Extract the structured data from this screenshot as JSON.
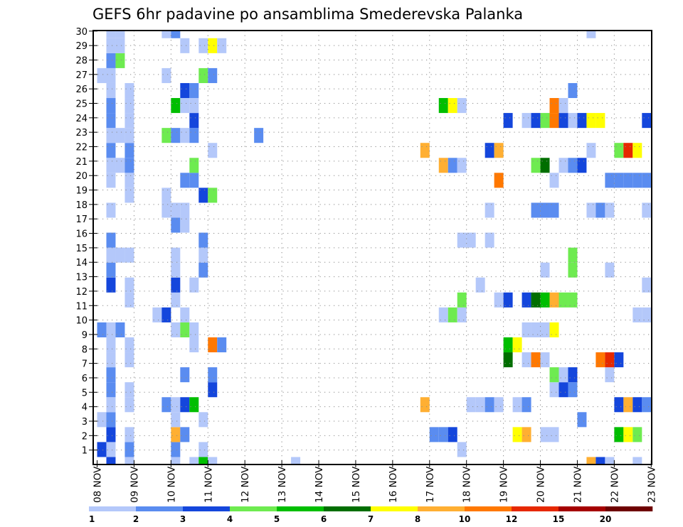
{
  "chart_data": {
    "type": "heatmap",
    "title": "GEFS 6hr padavine po ansamblima Smederevska Palanka",
    "xlabel": "",
    "ylabel": "",
    "x_unit": "6-hour step from 08 NOV 00Z",
    "x_range": [
      0,
      60
    ],
    "y_range": [
      0,
      30
    ],
    "grid": true,
    "x_ticks": [
      {
        "step": 0,
        "label": "08 NOV"
      },
      {
        "step": 4,
        "label": "09 NOV"
      },
      {
        "step": 8,
        "label": "10 NOV"
      },
      {
        "step": 12,
        "label": "11 NOV"
      },
      {
        "step": 16,
        "label": "12 NOV"
      },
      {
        "step": 20,
        "label": "13 NOV"
      },
      {
        "step": 24,
        "label": "14 NOV"
      },
      {
        "step": 28,
        "label": "15 NOV"
      },
      {
        "step": 32,
        "label": "16 NOV"
      },
      {
        "step": 36,
        "label": "17 NOV"
      },
      {
        "step": 40,
        "label": "18 NOV"
      },
      {
        "step": 44,
        "label": "19 NOV"
      },
      {
        "step": 48,
        "label": "20 NOV"
      },
      {
        "step": 52,
        "label": "21 NOV"
      },
      {
        "step": 56,
        "label": "22 NOV"
      },
      {
        "step": 60,
        "label": "23 NOV"
      }
    ],
    "y_ticks": [
      "1",
      "2",
      "3",
      "4",
      "5",
      "6",
      "7",
      "8",
      "9",
      "10",
      "11",
      "12",
      "13",
      "14",
      "15",
      "16",
      "17",
      "18",
      "19",
      "20",
      "21",
      "22",
      "23",
      "24",
      "25",
      "26",
      "27",
      "28",
      "29",
      "30"
    ],
    "colorbar": {
      "placement": "bottom",
      "levels": [
        1,
        2,
        3,
        4,
        5,
        6,
        7,
        8,
        10,
        12,
        15,
        20
      ],
      "labels": [
        "1",
        "2",
        "3",
        "4",
        "5",
        "6",
        "7",
        "8",
        "10",
        "12",
        "15",
        "20"
      ],
      "colors": [
        "#b4c8fa",
        "#5a8cf0",
        "#1446dc",
        "#6eeb50",
        "#00be00",
        "#006e00",
        "#ffff00",
        "#ffaf32",
        "#ff7800",
        "#e62800",
        "#a50000",
        "#6e0000"
      ]
    },
    "value_unit": "mm / 6h (bin midpoint estimated from color)",
    "members": [
      {
        "member": 0,
        "cells": [
          [
            1,
            3.5
          ],
          [
            3,
            1.5
          ],
          [
            8,
            1.5
          ],
          [
            10,
            1.5
          ],
          [
            11,
            5.5
          ],
          [
            12,
            1.5
          ],
          [
            21,
            1.5
          ],
          [
            53,
            9
          ],
          [
            54,
            3.5
          ],
          [
            55,
            1.5
          ],
          [
            58,
            1.5
          ]
        ]
      },
      {
        "member": 1,
        "cells": [
          [
            0,
            3.5
          ],
          [
            1,
            1.5
          ],
          [
            3,
            2.5
          ],
          [
            8,
            2.5
          ],
          [
            11,
            1.5
          ],
          [
            39,
            1.5
          ]
        ]
      },
      {
        "member": 2,
        "cells": [
          [
            1,
            3.5
          ],
          [
            3,
            1.5
          ],
          [
            8,
            9
          ],
          [
            9,
            2.5
          ],
          [
            36,
            2.5
          ],
          [
            37,
            2.5
          ],
          [
            38,
            3.5
          ],
          [
            45,
            7.5
          ],
          [
            46,
            9
          ],
          [
            48,
            1.5
          ],
          [
            49,
            1.5
          ],
          [
            56,
            5.5
          ],
          [
            57,
            7.5
          ],
          [
            58,
            4.5
          ]
        ]
      },
      {
        "member": 3,
        "cells": [
          [
            0,
            1.5
          ],
          [
            1,
            2.5
          ],
          [
            8,
            1.5
          ],
          [
            11,
            1.5
          ],
          [
            52,
            2.5
          ]
        ]
      },
      {
        "member": 4,
        "cells": [
          [
            1,
            1.5
          ],
          [
            3,
            1.5
          ],
          [
            7,
            2.5
          ],
          [
            8,
            1.5
          ],
          [
            9,
            3.5
          ],
          [
            10,
            5.5
          ],
          [
            35,
            9
          ],
          [
            40,
            1.5
          ],
          [
            41,
            1.5
          ],
          [
            42,
            2.5
          ],
          [
            43,
            1.5
          ],
          [
            45,
            1.5
          ],
          [
            46,
            2.5
          ],
          [
            56,
            3.5
          ],
          [
            57,
            9
          ],
          [
            58,
            3.5
          ],
          [
            59,
            2.5
          ]
        ]
      },
      {
        "member": 5,
        "cells": [
          [
            1,
            2.5
          ],
          [
            3,
            1.5
          ],
          [
            12,
            3.5
          ],
          [
            49,
            1.5
          ],
          [
            50,
            3.5
          ],
          [
            51,
            2.5
          ]
        ]
      },
      {
        "member": 6,
        "cells": [
          [
            1,
            2.5
          ],
          [
            9,
            2.5
          ],
          [
            12,
            2.5
          ],
          [
            49,
            4.5
          ],
          [
            50,
            1.5
          ],
          [
            51,
            3.5
          ],
          [
            55,
            1.5
          ]
        ]
      },
      {
        "member": 7,
        "cells": [
          [
            1,
            1.5
          ],
          [
            3,
            1.5
          ],
          [
            44,
            6.5
          ],
          [
            46,
            1.5
          ],
          [
            47,
            11
          ],
          [
            48,
            1.5
          ],
          [
            54,
            11
          ],
          [
            55,
            13.5
          ],
          [
            56,
            3.5
          ]
        ]
      },
      {
        "member": 8,
        "cells": [
          [
            1,
            1.5
          ],
          [
            3,
            1.5
          ],
          [
            10,
            1.5
          ],
          [
            12,
            11
          ],
          [
            13,
            2.5
          ],
          [
            44,
            5.5
          ],
          [
            45,
            7.5
          ]
        ]
      },
      {
        "member": 9,
        "cells": [
          [
            0,
            2.5
          ],
          [
            1,
            1.5
          ],
          [
            2,
            2.5
          ],
          [
            8,
            1.5
          ],
          [
            9,
            4.5
          ],
          [
            10,
            1.5
          ],
          [
            46,
            1.5
          ],
          [
            47,
            1.5
          ],
          [
            48,
            1.5
          ],
          [
            49,
            7.5
          ]
        ]
      },
      {
        "member": 10,
        "cells": [
          [
            6,
            1.5
          ],
          [
            7,
            3.5
          ],
          [
            9,
            1.5
          ],
          [
            37,
            1.5
          ],
          [
            38,
            4.5
          ],
          [
            39,
            1.5
          ],
          [
            58,
            1.5
          ],
          [
            59,
            1.5
          ]
        ]
      },
      {
        "member": 11,
        "cells": [
          [
            3,
            1.5
          ],
          [
            8,
            1.5
          ],
          [
            39,
            4.5
          ],
          [
            43,
            1.5
          ],
          [
            44,
            3.5
          ],
          [
            46,
            3.5
          ],
          [
            47,
            6.5
          ],
          [
            48,
            5.5
          ],
          [
            49,
            9
          ],
          [
            50,
            4.5
          ],
          [
            51,
            4.5
          ]
        ]
      },
      {
        "member": 12,
        "cells": [
          [
            1,
            3.5
          ],
          [
            3,
            1.5
          ],
          [
            8,
            3.5
          ],
          [
            10,
            1.5
          ],
          [
            41,
            1.5
          ],
          [
            59,
            1.5
          ]
        ]
      },
      {
        "member": 13,
        "cells": [
          [
            1,
            2.5
          ],
          [
            8,
            1.5
          ],
          [
            11,
            2.5
          ],
          [
            48,
            1.5
          ],
          [
            51,
            4.5
          ],
          [
            55,
            1.5
          ]
        ]
      },
      {
        "member": 14,
        "cells": [
          [
            1,
            1.5
          ],
          [
            2,
            1.5
          ],
          [
            3,
            1.5
          ],
          [
            8,
            1.5
          ],
          [
            11,
            1.5
          ],
          [
            51,
            4.5
          ]
        ]
      },
      {
        "member": 15,
        "cells": [
          [
            1,
            2.5
          ],
          [
            11,
            2.5
          ],
          [
            39,
            1.5
          ],
          [
            40,
            1.5
          ],
          [
            42,
            1.5
          ]
        ]
      },
      {
        "member": 16,
        "cells": [
          [
            8,
            2.5
          ],
          [
            9,
            1.5
          ]
        ]
      },
      {
        "member": 17,
        "cells": [
          [
            1,
            1.5
          ],
          [
            7,
            1.5
          ],
          [
            8,
            1.5
          ],
          [
            9,
            1.5
          ],
          [
            42,
            1.5
          ],
          [
            47,
            2.5
          ],
          [
            48,
            2.5
          ],
          [
            49,
            2.5
          ],
          [
            53,
            1.5
          ],
          [
            54,
            2.5
          ],
          [
            55,
            1.5
          ],
          [
            59,
            1.5
          ]
        ]
      },
      {
        "member": 18,
        "cells": [
          [
            3,
            1.5
          ],
          [
            7,
            1.5
          ],
          [
            11,
            3.5
          ],
          [
            12,
            4.5
          ]
        ]
      },
      {
        "member": 19,
        "cells": [
          [
            1,
            1.5
          ],
          [
            3,
            1.5
          ],
          [
            9,
            2.5
          ],
          [
            10,
            2.5
          ],
          [
            43,
            11
          ],
          [
            49,
            1.5
          ],
          [
            55,
            2.5
          ],
          [
            56,
            2.5
          ],
          [
            57,
            2.5
          ],
          [
            58,
            2.5
          ],
          [
            59,
            2.5
          ]
        ]
      },
      {
        "member": 20,
        "cells": [
          [
            1,
            1.5
          ],
          [
            2,
            1.5
          ],
          [
            3,
            2.5
          ],
          [
            10,
            4.5
          ],
          [
            37,
            9
          ],
          [
            38,
            2.5
          ],
          [
            39,
            1.5
          ],
          [
            47,
            4.5
          ],
          [
            48,
            6.5
          ],
          [
            50,
            1.5
          ],
          [
            51,
            2.5
          ],
          [
            52,
            3.5
          ]
        ]
      },
      {
        "member": 21,
        "cells": [
          [
            1,
            2.5
          ],
          [
            3,
            2.5
          ],
          [
            12,
            1.5
          ],
          [
            35,
            9
          ],
          [
            42,
            3.5
          ],
          [
            43,
            9
          ],
          [
            53,
            1.5
          ],
          [
            56,
            4.5
          ],
          [
            57,
            13.5
          ],
          [
            58,
            7.5
          ]
        ]
      },
      {
        "member": 22,
        "cells": [
          [
            1,
            1.5
          ],
          [
            2,
            1.5
          ],
          [
            3,
            1.5
          ],
          [
            7,
            4.5
          ],
          [
            8,
            2.5
          ],
          [
            9,
            1.5
          ],
          [
            10,
            2.5
          ],
          [
            17,
            2.5
          ]
        ]
      },
      {
        "member": 23,
        "cells": [
          [
            1,
            2.5
          ],
          [
            3,
            1.5
          ],
          [
            10,
            3.5
          ],
          [
            44,
            3.5
          ],
          [
            46,
            1.5
          ],
          [
            47,
            3.5
          ],
          [
            48,
            4.5
          ],
          [
            49,
            11
          ],
          [
            50,
            3.5
          ],
          [
            51,
            1.5
          ],
          [
            52,
            3.5
          ],
          [
            53,
            7.5
          ],
          [
            54,
            7.5
          ],
          [
            59,
            3.5
          ]
        ]
      },
      {
        "member": 24,
        "cells": [
          [
            1,
            2.5
          ],
          [
            3,
            1.5
          ],
          [
            8,
            5.5
          ],
          [
            9,
            1.5
          ],
          [
            10,
            1.5
          ],
          [
            37,
            5.5
          ],
          [
            38,
            7.5
          ],
          [
            39,
            1.5
          ],
          [
            49,
            11
          ],
          [
            50,
            1.5
          ]
        ]
      },
      {
        "member": 25,
        "cells": [
          [
            1,
            1.5
          ],
          [
            3,
            1.5
          ],
          [
            9,
            3.5
          ],
          [
            10,
            2.5
          ],
          [
            51,
            2.5
          ]
        ]
      },
      {
        "member": 26,
        "cells": [
          [
            0,
            1.5
          ],
          [
            1,
            1.5
          ],
          [
            7,
            1.5
          ],
          [
            11,
            4.5
          ],
          [
            12,
            2.5
          ]
        ]
      },
      {
        "member": 27,
        "cells": [
          [
            1,
            2.5
          ],
          [
            2,
            4.5
          ]
        ]
      },
      {
        "member": 28,
        "cells": [
          [
            1,
            1.5
          ],
          [
            2,
            1.5
          ],
          [
            9,
            1.5
          ],
          [
            11,
            1.5
          ],
          [
            12,
            7.5
          ],
          [
            13,
            1.5
          ]
        ]
      },
      {
        "member": 29,
        "cells": [
          [
            1,
            1.5
          ],
          [
            2,
            1.5
          ],
          [
            7,
            1.5
          ],
          [
            8,
            2.5
          ],
          [
            53,
            1.5
          ]
        ]
      }
    ]
  }
}
